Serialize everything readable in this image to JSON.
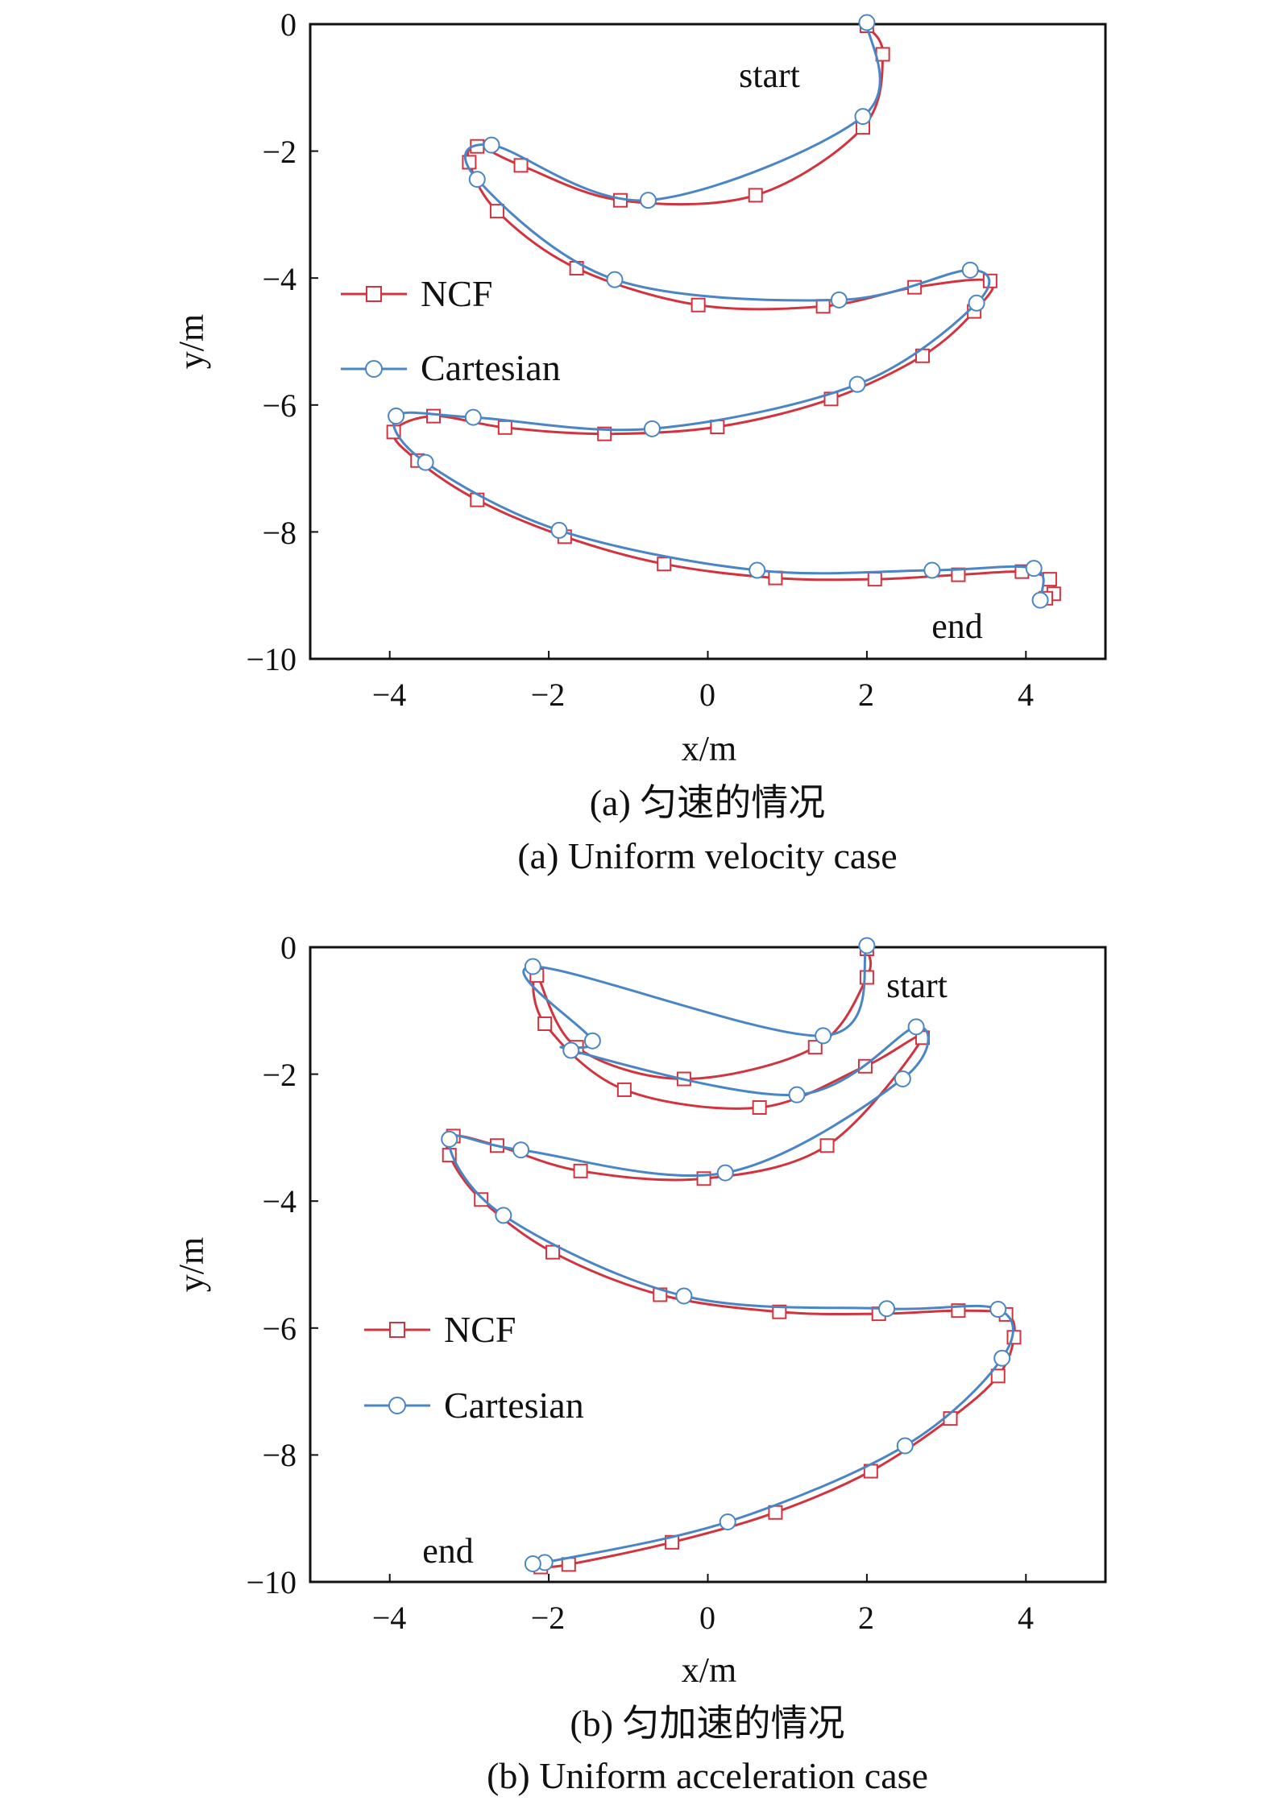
{
  "colors": {
    "ncf": "#d2343f",
    "cartesian": "#4a86c5",
    "axis": "#111111"
  },
  "chart_data": [
    {
      "type": "line",
      "caption_cn": "(a) 匀速的情况",
      "caption_en": "(a) Uniform velocity case",
      "xlabel": "x/m",
      "ylabel": "y/m",
      "xlim": [
        -5,
        5
      ],
      "ylim": [
        -10,
        0
      ],
      "xticks": [
        -4,
        -2,
        0,
        2,
        4
      ],
      "yticks": [
        0,
        -2,
        -4,
        -6,
        -8,
        -10
      ],
      "xtick_labels": [
        "−4",
        "−2",
        "0",
        "2",
        "4"
      ],
      "ytick_labels": [
        "0",
        "−2",
        "−4",
        "−6",
        "−8",
        "−10"
      ],
      "legend": {
        "placement": "middle-left",
        "entries": [
          "NCF",
          "Cartesian"
        ]
      },
      "annotations": [
        {
          "text": "start",
          "x": 0.3,
          "y": -0.8
        },
        {
          "text": "end",
          "x": 2.8,
          "y": -9.4
        }
      ],
      "series": [
        {
          "name": "NCF",
          "marker": "square",
          "points": [
            [
              2.0,
              0.0
            ],
            [
              2.2,
              -0.45
            ],
            [
              1.95,
              -1.6
            ],
            [
              0.6,
              -2.67
            ],
            [
              -1.1,
              -2.75
            ],
            [
              -2.35,
              -2.2
            ],
            [
              -2.9,
              -1.9
            ],
            [
              -3.0,
              -2.15
            ],
            [
              -2.65,
              -2.92
            ],
            [
              -1.65,
              -3.82
            ],
            [
              -0.12,
              -4.4
            ],
            [
              1.45,
              -4.42
            ],
            [
              2.6,
              -4.12
            ],
            [
              3.55,
              -4.02
            ],
            [
              3.35,
              -4.5
            ],
            [
              2.7,
              -5.2
            ],
            [
              1.55,
              -5.88
            ],
            [
              0.12,
              -6.32
            ],
            [
              -1.3,
              -6.43
            ],
            [
              -2.55,
              -6.33
            ],
            [
              -3.45,
              -6.15
            ],
            [
              -3.95,
              -6.4
            ],
            [
              -3.65,
              -6.85
            ],
            [
              -2.9,
              -7.47
            ],
            [
              -1.8,
              -8.05
            ],
            [
              -0.55,
              -8.48
            ],
            [
              0.85,
              -8.7
            ],
            [
              2.1,
              -8.72
            ],
            [
              3.15,
              -8.65
            ],
            [
              3.95,
              -8.6
            ],
            [
              4.3,
              -8.72
            ],
            [
              4.35,
              -8.95
            ],
            [
              4.25,
              -9.02
            ]
          ]
        },
        {
          "name": "Cartesian",
          "marker": "circle",
          "points": [
            [
              2.0,
              0.0
            ],
            [
              1.95,
              -1.48
            ],
            [
              -0.75,
              -2.8
            ],
            [
              -2.72,
              -1.93
            ],
            [
              -2.9,
              -2.47
            ],
            [
              -1.17,
              -4.05
            ],
            [
              1.65,
              -4.37
            ],
            [
              3.3,
              -3.9
            ],
            [
              3.38,
              -4.42
            ],
            [
              1.88,
              -5.7
            ],
            [
              -0.7,
              -6.4
            ],
            [
              -2.95,
              -6.22
            ],
            [
              -3.92,
              -6.2
            ],
            [
              -3.55,
              -6.93
            ],
            [
              -1.87,
              -8.0
            ],
            [
              0.62,
              -8.63
            ],
            [
              2.82,
              -8.63
            ],
            [
              4.1,
              -8.6
            ],
            [
              4.18,
              -9.1
            ]
          ]
        }
      ]
    },
    {
      "type": "line",
      "caption_cn": "(b) 匀加速的情况",
      "caption_en": "(b) Uniform acceleration case",
      "xlabel": "x/m",
      "ylabel": "y/m",
      "xlim": [
        -5,
        5
      ],
      "ylim": [
        -10,
        0
      ],
      "xticks": [
        -4,
        -2,
        0,
        2,
        4
      ],
      "yticks": [
        0,
        -2,
        -4,
        -6,
        -8,
        -10
      ],
      "xtick_labels": [
        "−4",
        "−2",
        "0",
        "2",
        "4"
      ],
      "ytick_labels": [
        "0",
        "−2",
        "−4",
        "−6",
        "−8",
        "−10"
      ],
      "legend": {
        "placement": "bottom-left",
        "entries": [
          "NCF",
          "Cartesian"
        ]
      },
      "annotations": [
        {
          "text": "start",
          "x": 2.15,
          "y": -0.72
        },
        {
          "text": "end",
          "x": -3.9,
          "y": -9.62
        }
      ],
      "series": [
        {
          "name": "NCF",
          "marker": "square",
          "points": [
            [
              2.0,
              0.0
            ],
            [
              2.0,
              -0.45
            ],
            [
              1.35,
              -1.55
            ],
            [
              -0.3,
              -2.05
            ],
            [
              -1.65,
              -1.55
            ],
            [
              -2.15,
              -0.42
            ],
            [
              -2.05,
              -1.18
            ],
            [
              -1.05,
              -2.22
            ],
            [
              0.65,
              -2.5
            ],
            [
              1.98,
              -1.85
            ],
            [
              2.7,
              -1.4
            ],
            [
              1.5,
              -3.1
            ],
            [
              -0.05,
              -3.62
            ],
            [
              -1.6,
              -3.5
            ],
            [
              -2.65,
              -3.1
            ],
            [
              -3.2,
              -2.95
            ],
            [
              -3.25,
              -3.25
            ],
            [
              -2.85,
              -3.95
            ],
            [
              -1.95,
              -4.78
            ],
            [
              -0.6,
              -5.45
            ],
            [
              0.9,
              -5.72
            ],
            [
              2.15,
              -5.75
            ],
            [
              3.15,
              -5.7
            ],
            [
              3.75,
              -5.76
            ],
            [
              3.85,
              -6.12
            ],
            [
              3.65,
              -6.73
            ],
            [
              3.05,
              -7.4
            ],
            [
              2.05,
              -8.23
            ],
            [
              0.85,
              -8.88
            ],
            [
              -0.45,
              -9.35
            ],
            [
              -1.75,
              -9.7
            ],
            [
              -2.1,
              -9.74
            ]
          ]
        },
        {
          "name": "Cartesian",
          "marker": "circle",
          "points": [
            [
              2.0,
              0.0
            ],
            [
              1.45,
              -1.42
            ],
            [
              -2.2,
              -0.33
            ],
            [
              -1.45,
              -1.5
            ],
            [
              -1.72,
              -1.65
            ],
            [
              1.12,
              -2.35
            ],
            [
              2.62,
              -1.28
            ],
            [
              2.45,
              -2.1
            ],
            [
              0.22,
              -3.58
            ],
            [
              -2.35,
              -3.22
            ],
            [
              -3.25,
              -3.05
            ],
            [
              -2.57,
              -4.25
            ],
            [
              -0.3,
              -5.52
            ],
            [
              2.25,
              -5.72
            ],
            [
              3.65,
              -5.73
            ],
            [
              3.7,
              -6.5
            ],
            [
              2.48,
              -7.88
            ],
            [
              0.25,
              -9.08
            ],
            [
              -2.05,
              -9.72
            ],
            [
              -2.2,
              -9.74
            ]
          ]
        }
      ]
    }
  ]
}
